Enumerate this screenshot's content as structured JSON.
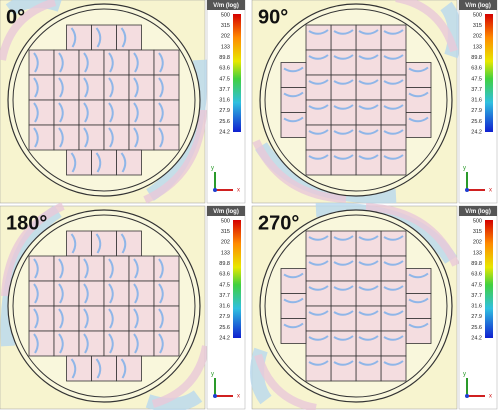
{
  "panels": [
    {
      "label": "0°"
    },
    {
      "label": "90°"
    },
    {
      "label": "180°"
    },
    {
      "label": "270°"
    }
  ],
  "colorbar": {
    "title": "V/m (log)",
    "ticks": [
      "500",
      "315",
      "202",
      "133",
      "89.8",
      "63.6",
      "47.5",
      "37.7",
      "31.6",
      "27.9",
      "25.6",
      "24.2"
    ]
  },
  "axes": {
    "y": "y",
    "x": "x"
  }
}
